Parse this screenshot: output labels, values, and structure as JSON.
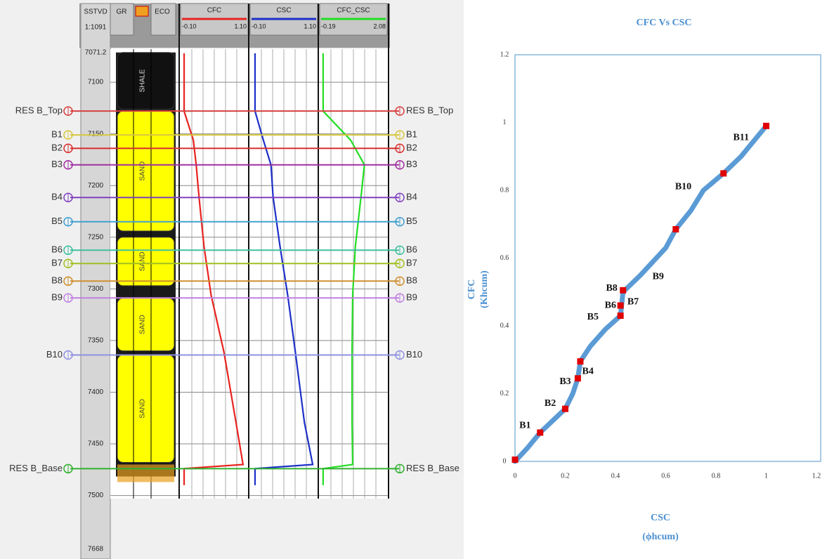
{
  "chart_data": [
    {
      "type": "well-log",
      "depth_header": "SSTVD",
      "depth_scale": "1:1091",
      "depth_bottom_label": "7668",
      "ylim": [
        7068,
        7503
      ],
      "yticks": [
        7071.2,
        7100,
        7150,
        7200,
        7250,
        7300,
        7350,
        7400,
        7450,
        7500
      ],
      "lithology_headers": [
        "GR",
        "ECO"
      ],
      "lithology": [
        {
          "label": "SHALE",
          "top": 7071.2,
          "base": 7126,
          "color": "#111111"
        },
        {
          "label": "SAND",
          "top": 7128,
          "base": 7244,
          "color": "#ffff00"
        },
        {
          "label": "SAND",
          "top": 7250,
          "base": 7297,
          "color": "#ffff00"
        },
        {
          "label": "SAND",
          "top": 7309,
          "base": 7360,
          "color": "#ffff00"
        },
        {
          "label": "SAND",
          "top": 7364,
          "base": 7468,
          "color": "#ffff00"
        }
      ],
      "depths": [
        7072,
        7128,
        7156,
        7180,
        7211,
        7259,
        7306,
        7361,
        7429,
        7470,
        7474,
        7490
      ],
      "series": [
        {
          "name": "CFC",
          "color": "#e8231f",
          "scale": [
            {
              "value": -0.1,
              "label": "-0.10"
            },
            {
              "value": 1.1,
              "label": "1.10"
            }
          ],
          "values": [
            -0.037,
            -0.037,
            0.127,
            0.178,
            0.228,
            0.317,
            0.443,
            0.671,
            0.885,
            1.011,
            -0.037,
            -0.037
          ]
        },
        {
          "name": "CSC",
          "color": "#1c2fc8",
          "scale": [
            {
              "value": -0.1,
              "label": "-0.10"
            },
            {
              "value": 1.1,
              "label": "1.10"
            }
          ],
          "values": [
            -0.013,
            -0.013,
            0.135,
            0.271,
            0.308,
            0.432,
            0.568,
            0.704,
            0.865,
            1.013,
            -0.013,
            -0.013
          ]
        },
        {
          "name": "CFC_CSC",
          "color": "#22dd22",
          "scale": [
            {
              "value": -0.19,
              "label": "-0.19"
            },
            {
              "value": 2.08,
              "label": "2.08"
            }
          ],
          "values": [
            -0.074,
            -0.074,
            0.852,
            1.316,
            1.2,
            1.01,
            0.92,
            0.9,
            0.9,
            0.92,
            -0.074,
            -0.074
          ]
        }
      ],
      "markers": [
        {
          "name": "RES B_Top",
          "depth": 7127.9,
          "color": "#d84040"
        },
        {
          "name": "B1",
          "depth": 7151,
          "color": "#d8c840"
        },
        {
          "name": "B2",
          "depth": 7164,
          "color": "#d83030"
        },
        {
          "name": "B3",
          "depth": 7180,
          "color": "#a030a0"
        },
        {
          "name": "B4",
          "depth": 7211.6,
          "color": "#8040c0"
        },
        {
          "name": "B5",
          "depth": 7235,
          "color": "#40a0d0"
        },
        {
          "name": "B6",
          "depth": 7262.6,
          "color": "#40c0a0"
        },
        {
          "name": "B7",
          "depth": 7275.5,
          "color": "#a0c020"
        },
        {
          "name": "B8",
          "depth": 7292.5,
          "color": "#d09030"
        },
        {
          "name": "B9",
          "depth": 7308.8,
          "color": "#c080e0"
        },
        {
          "name": "B10",
          "depth": 7364,
          "color": "#9090e0"
        },
        {
          "name": "RES B_Base",
          "depth": 7474,
          "color": "#30b030"
        }
      ]
    },
    {
      "type": "scatter",
      "title": "CFC Vs CSC",
      "x_label": [
        "CSC",
        "(ϕhcum)"
      ],
      "y_label": [
        "CFC",
        "(Khcum)"
      ],
      "xlim": [
        0,
        1.2
      ],
      "ylim": [
        0,
        1.2
      ],
      "xticks": [
        0,
        0.2,
        0.4,
        0.6,
        0.8,
        1,
        1.2
      ],
      "yticks": [
        0,
        0.2,
        0.4,
        0.6,
        0.8,
        1,
        1.2
      ],
      "series": [
        {
          "style": "line",
          "color": "#5b9bd5",
          "x": [
            0,
            0.05,
            0.1,
            0.15,
            0.2,
            0.23,
            0.25,
            0.26,
            0.3,
            0.36,
            0.42,
            0.43,
            0.5,
            0.6,
            0.64,
            0.7,
            0.75,
            0.83,
            0.9,
            1.0
          ],
          "values": [
            0,
            0.04,
            0.085,
            0.12,
            0.155,
            0.2,
            0.245,
            0.295,
            0.34,
            0.39,
            0.43,
            0.5,
            0.55,
            0.63,
            0.685,
            0.74,
            0.8,
            0.85,
            0.9,
            0.99
          ]
        },
        {
          "style": "marker",
          "color": "#e00000",
          "x": [
            0,
            0.1,
            0.2,
            0.25,
            0.26,
            0.42,
            0.42,
            0.43,
            0.64,
            0.83,
            1.0
          ],
          "values": [
            0.005,
            0.085,
            0.155,
            0.245,
            0.295,
            0.43,
            0.46,
            0.505,
            0.685,
            0.85,
            0.99
          ]
        }
      ],
      "annotations": [
        {
          "text": "B1",
          "x": 0.04,
          "y": 0.105
        },
        {
          "text": "B2",
          "x": 0.14,
          "y": 0.17
        },
        {
          "text": "B3",
          "x": 0.2,
          "y": 0.235
        },
        {
          "text": "B4",
          "x": 0.29,
          "y": 0.265
        },
        {
          "text": "B5",
          "x": 0.31,
          "y": 0.425
        },
        {
          "text": "B6",
          "x": 0.38,
          "y": 0.46
        },
        {
          "text": "B7",
          "x": 0.47,
          "y": 0.47
        },
        {
          "text": "B8",
          "x": 0.385,
          "y": 0.51
        },
        {
          "text": "B9",
          "x": 0.57,
          "y": 0.545
        },
        {
          "text": "B10",
          "x": 0.67,
          "y": 0.81
        },
        {
          "text": "B11",
          "x": 0.9,
          "y": 0.955
        }
      ]
    }
  ]
}
